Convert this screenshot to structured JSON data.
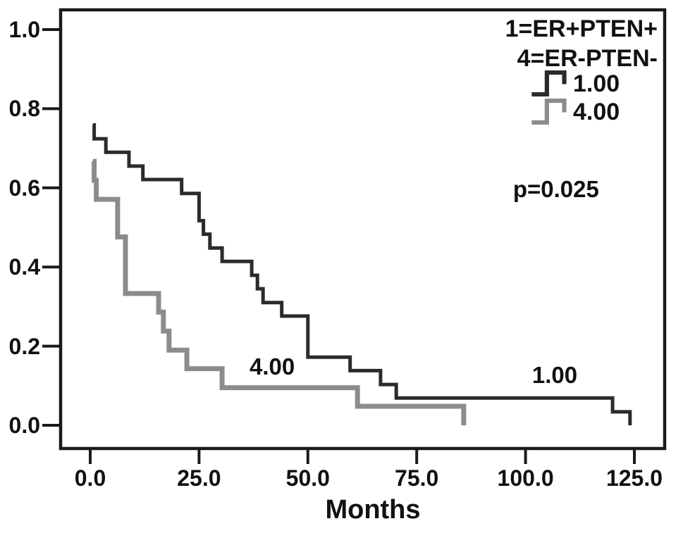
{
  "figure": {
    "legend": {
      "title_lines": [
        "1=ER+PTEN+",
        "4=ER-PTEN-"
      ],
      "entries": [
        {
          "label": "1.00",
          "color": "#2b2b2b"
        },
        {
          "label": "4.00",
          "color": "#8c8c8c"
        }
      ]
    },
    "p_value": "p=0.025"
  },
  "chart_data": {
    "type": "line",
    "subtype": "kaplan-meier-step",
    "title": "",
    "xlabel": "Months",
    "ylabel": "",
    "xlim": [
      -7,
      132
    ],
    "ylim": [
      0,
      1.06
    ],
    "grid": false,
    "legend_position": "top-right",
    "x_ticks": [
      {
        "label": "0.0",
        "value": 0
      },
      {
        "label": "25.0",
        "value": 25
      },
      {
        "label": "50.0",
        "value": 50
      },
      {
        "label": "75.0",
        "value": 75
      },
      {
        "label": "100.0",
        "value": 100
      },
      {
        "label": "125.0",
        "value": 125
      }
    ],
    "y_ticks": [
      {
        "label": "0.0",
        "value": 0.0
      },
      {
        "label": "0.2",
        "value": 0.2
      },
      {
        "label": "0.4",
        "value": 0.4
      },
      {
        "label": "0.6",
        "value": 0.6
      },
      {
        "label": "0.8",
        "value": 0.8
      },
      {
        "label": "1.0",
        "value": 1.0
      }
    ],
    "series": [
      {
        "name": "1.00",
        "group": "1=ER+PTEN+",
        "color": "#2b2b2b",
        "stroke_width": 5,
        "points": [
          [
            0.6,
            0.759
          ],
          [
            0.9,
            0.724
          ],
          [
            3.6,
            0.69
          ],
          [
            8.9,
            0.655
          ],
          [
            12.1,
            0.621
          ],
          [
            21.0,
            0.586
          ],
          [
            25.0,
            0.517
          ],
          [
            26.0,
            0.483
          ],
          [
            27.5,
            0.448
          ],
          [
            30.3,
            0.414
          ],
          [
            37.1,
            0.379
          ],
          [
            38.4,
            0.345
          ],
          [
            39.7,
            0.31
          ],
          [
            44.0,
            0.276
          ],
          [
            50.0,
            0.172
          ],
          [
            59.7,
            0.138
          ],
          [
            66.7,
            0.103
          ],
          [
            70.3,
            0.069
          ],
          [
            120.0,
            0.034
          ],
          [
            124.0,
            0.0
          ]
        ]
      },
      {
        "name": "4.00",
        "group": "4=ER-PTEN-",
        "color": "#8c8c8c",
        "stroke_width": 7,
        "points": [
          [
            0.6,
            0.667
          ],
          [
            0.9,
            0.619
          ],
          [
            1.4,
            0.571
          ],
          [
            6.3,
            0.476
          ],
          [
            8.1,
            0.333
          ],
          [
            15.7,
            0.286
          ],
          [
            16.8,
            0.238
          ],
          [
            18.1,
            0.19
          ],
          [
            22.2,
            0.143
          ],
          [
            30.3,
            0.095
          ],
          [
            61.4,
            0.048
          ],
          [
            85.8,
            0.0
          ]
        ]
      }
    ],
    "annotations": [
      {
        "text": "4.00",
        "x": 41.8,
        "y": 0.148
      },
      {
        "text": "1.00",
        "x": 106.7,
        "y": 0.126
      },
      {
        "text": "p=0.025",
        "x": 107.0,
        "y": 0.596
      }
    ]
  }
}
